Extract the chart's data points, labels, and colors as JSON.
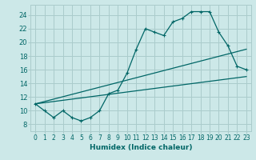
{
  "xlabel": "Humidex (Indice chaleur)",
  "bg_color": "#cce8e8",
  "grid_color": "#aacccc",
  "line_color": "#006666",
  "xlim": [
    -0.5,
    23.5
  ],
  "ylim": [
    7,
    25.5
  ],
  "yticks": [
    8,
    10,
    12,
    14,
    16,
    18,
    20,
    22,
    24
  ],
  "xticks": [
    0,
    1,
    2,
    3,
    4,
    5,
    6,
    7,
    8,
    9,
    10,
    11,
    12,
    13,
    14,
    15,
    16,
    17,
    18,
    19,
    20,
    21,
    22,
    23
  ],
  "series1_x": [
    0,
    1,
    2,
    3,
    4,
    5,
    6,
    7,
    8,
    9,
    10,
    11,
    12,
    13,
    14,
    15,
    16,
    17,
    18,
    19,
    20,
    21,
    22,
    23
  ],
  "series1_y": [
    11,
    10,
    9,
    10,
    9,
    8.5,
    9,
    10,
    12.5,
    13,
    15.5,
    19,
    22,
    21.5,
    21,
    23,
    23.5,
    24.5,
    24.5,
    24.5,
    21.5,
    19.5,
    16.5,
    16
  ],
  "series2_x": [
    0,
    23
  ],
  "series2_y": [
    11,
    15
  ],
  "series3_x": [
    0,
    23
  ],
  "series3_y": [
    11,
    19
  ]
}
